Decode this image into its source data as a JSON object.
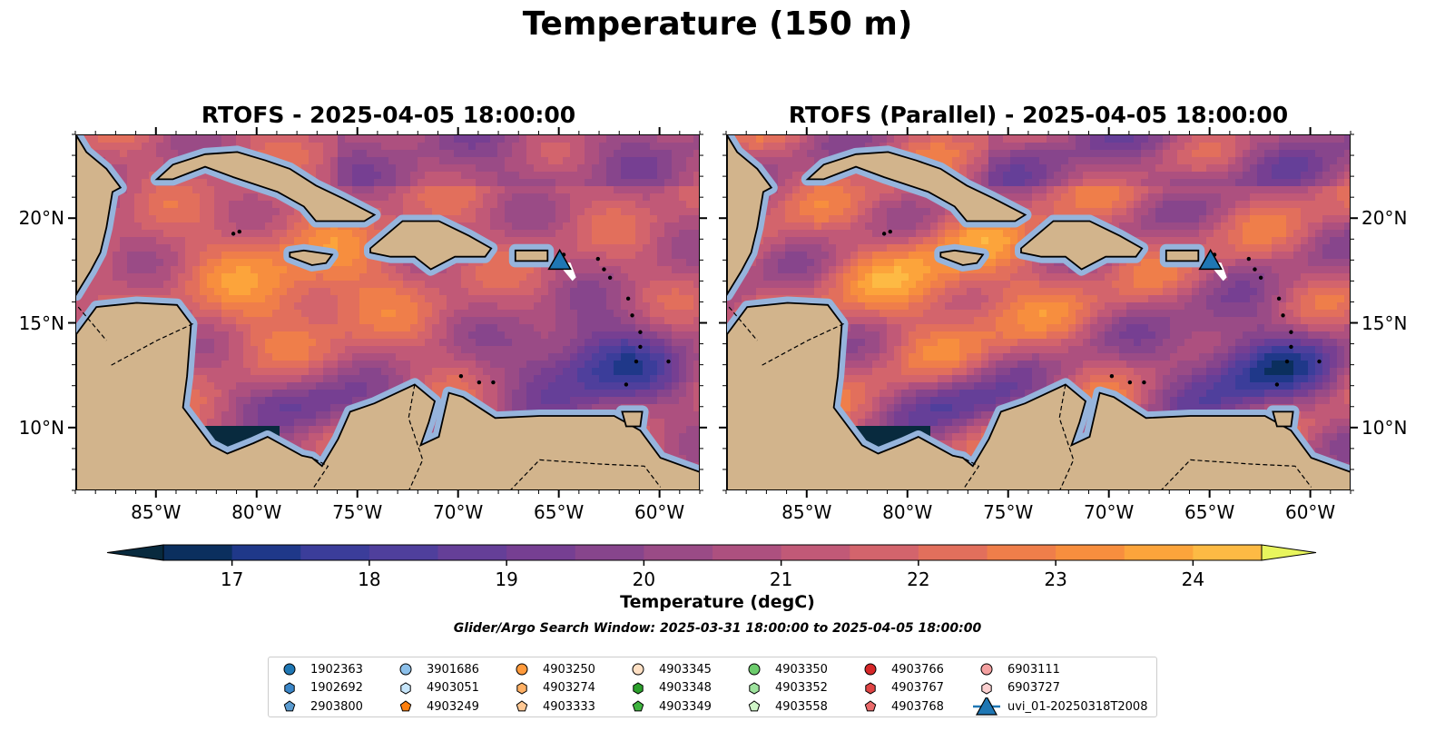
{
  "figure": {
    "suptitle": "Temperature (150 m)",
    "panels": [
      {
        "title": "RTOFS - 2025-04-05 18:00:00"
      },
      {
        "title": "RTOFS (Parallel) - 2025-04-05 18:00:00"
      }
    ],
    "extent": {
      "lon": [
        -89,
        -58
      ],
      "lat": [
        7,
        24
      ]
    },
    "lon_ticks": [
      "85°W",
      "80°W",
      "75°W",
      "70°W",
      "65°W",
      "60°W"
    ],
    "lon_tick_values": [
      -85,
      -80,
      -75,
      -70,
      -65,
      -60
    ],
    "lat_ticks": [
      "20°N",
      "15°N",
      "10°N"
    ],
    "lat_tick_values": [
      20,
      15,
      10
    ],
    "colorbar": {
      "label": "Temperature (degC)",
      "ticks": [
        "17",
        "18",
        "19",
        "20",
        "21",
        "22",
        "23",
        "24"
      ],
      "range": [
        16.5,
        24.5
      ],
      "step": 0.5,
      "extend": "both",
      "colors": [
        "#082a3e",
        "#0b2f5e",
        "#1f3889",
        "#3b3d9a",
        "#4f3f9c",
        "#653f98",
        "#763f92",
        "#87458c",
        "#9a4b86",
        "#ad507f",
        "#c15977",
        "#d3646c",
        "#e26f5c",
        "#ef7e4a",
        "#f78e3e",
        "#fca43b",
        "#fdba44",
        "#f8d754",
        "#e8f55d"
      ]
    },
    "land_color": "#d2b48c",
    "shelf_color": "#96b4dc",
    "search_window": "Glider/Argo Search Window: 2025-03-31 18:00:00 to 2025-04-05 18:00:00",
    "legend": {
      "items": [
        {
          "label": "1902363",
          "marker": "circle",
          "color": "#1f77b4"
        },
        {
          "label": "1902692",
          "marker": "hexagon",
          "color": "#3a86c8"
        },
        {
          "label": "2903800",
          "marker": "pentagon",
          "color": "#5a9bd0"
        },
        {
          "label": "3901686",
          "marker": "circle",
          "color": "#8cc0ea"
        },
        {
          "label": "4903051",
          "marker": "hexagon",
          "color": "#c7e6fb"
        },
        {
          "label": "4903249",
          "marker": "pentagon",
          "color": "#ff7f0e"
        },
        {
          "label": "4903250",
          "marker": "circle",
          "color": "#ff9a3c"
        },
        {
          "label": "4903274",
          "marker": "hexagon",
          "color": "#ffb064"
        },
        {
          "label": "4903333",
          "marker": "pentagon",
          "color": "#ffc894"
        },
        {
          "label": "4903345",
          "marker": "circle",
          "color": "#ffe0c4"
        },
        {
          "label": "4903348",
          "marker": "hexagon",
          "color": "#2ca02c"
        },
        {
          "label": "4903349",
          "marker": "pentagon",
          "color": "#3fb43f"
        },
        {
          "label": "4903350",
          "marker": "circle",
          "color": "#6ccc6c"
        },
        {
          "label": "4903352",
          "marker": "hexagon",
          "color": "#9ee39e"
        },
        {
          "label": "4903558",
          "marker": "pentagon",
          "color": "#d0f5c8"
        },
        {
          "label": "4903766",
          "marker": "circle",
          "color": "#d62728"
        },
        {
          "label": "4903767",
          "marker": "hexagon",
          "color": "#e04444"
        },
        {
          "label": "4903768",
          "marker": "pentagon",
          "color": "#ea6a6a"
        },
        {
          "label": "6903111",
          "marker": "circle",
          "color": "#f4a0a0"
        },
        {
          "label": "6903727",
          "marker": "hexagon",
          "color": "#fcd0d0"
        },
        {
          "label": "uvi_01-20250318T2008",
          "marker": "triangle-line",
          "color": "#1f77b4"
        }
      ]
    },
    "glider": {
      "name": "uvi_01-20250318T2008",
      "lon": -65.0,
      "lat": 18.0
    }
  }
}
